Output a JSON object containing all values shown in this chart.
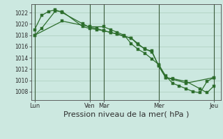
{
  "background_color": "#cce8e0",
  "grid_color": "#aaccbb",
  "line_color": "#2d6e2d",
  "marker_color": "#2d6e2d",
  "xlabel": "Pression niveau de la mer( hPa )",
  "xlabel_fontsize": 8,
  "ylim": [
    1006.5,
    1023.5
  ],
  "yticks": [
    1008,
    1010,
    1012,
    1014,
    1016,
    1018,
    1020,
    1022
  ],
  "xtick_labels": [
    "Lun",
    "Ven",
    "Mar",
    "Mer",
    "Jeu"
  ],
  "xtick_positions": [
    0,
    8,
    10,
    18,
    26
  ],
  "day_lines_x": [
    0,
    8,
    10,
    18,
    26
  ],
  "line1_x": [
    0,
    1,
    3,
    4,
    7,
    8,
    9,
    10,
    11,
    12,
    13,
    14,
    15,
    16,
    17,
    18,
    19,
    20,
    22,
    26
  ],
  "line1": [
    1018.0,
    1019.2,
    1022.3,
    1022.2,
    1019.5,
    1019.2,
    1019.0,
    1018.8,
    1018.5,
    1018.2,
    1017.8,
    1017.5,
    1016.3,
    1015.6,
    1015.0,
    1012.6,
    1010.5,
    1010.2,
    1009.5,
    1010.5
  ],
  "line2_x": [
    0,
    1,
    2,
    3,
    4,
    7,
    8,
    9,
    10,
    11,
    12,
    13,
    14,
    15,
    16,
    17,
    18,
    19,
    20,
    22,
    24,
    25,
    26
  ],
  "line2": [
    1019.0,
    1021.5,
    1022.2,
    1022.5,
    1022.0,
    1020.0,
    1019.4,
    1019.2,
    1018.8,
    1018.5,
    1018.2,
    1017.8,
    1017.5,
    1016.5,
    1015.5,
    1015.2,
    1012.5,
    1010.5,
    1010.3,
    1009.8,
    1008.5,
    1007.8,
    1009.0
  ],
  "line3_x": [
    0,
    4,
    8,
    10,
    11,
    12,
    13,
    14,
    15,
    16,
    17,
    18,
    19,
    20,
    21,
    22,
    23,
    24,
    25,
    26
  ],
  "line3": [
    1018.0,
    1020.5,
    1019.5,
    1019.5,
    1019.0,
    1018.5,
    1018.0,
    1016.5,
    1015.5,
    1014.8,
    1013.8,
    1012.8,
    1010.8,
    1009.5,
    1009.0,
    1008.5,
    1008.0,
    1007.8,
    1009.8,
    1010.5
  ],
  "xlim": [
    -0.5,
    27
  ]
}
